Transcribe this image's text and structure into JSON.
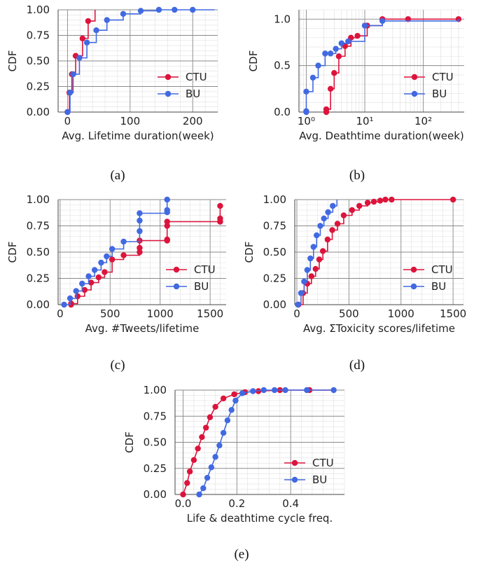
{
  "colors": {
    "ctu": "#dc143c",
    "bu": "#4169e1"
  },
  "chart_data": [
    {
      "id": "a",
      "caption": "(a)",
      "type": "line",
      "xlabel": "Avg. Lifetime duration(week)",
      "ylabel": "CDF",
      "xscale": "linear",
      "xlim": [
        -15,
        240
      ],
      "ylim": [
        0,
        1
      ],
      "xticks": [
        0,
        100,
        200
      ],
      "xtick_labels": [
        "0",
        "100",
        "200"
      ],
      "yticks": [
        0,
        0.25,
        0.5,
        0.75,
        1.0
      ],
      "ytick_labels": [
        "0.00",
        "0.25",
        "0.50",
        "0.75",
        "1.00"
      ],
      "legend_position": "lower-right",
      "legend": [
        "CTU",
        "BU"
      ],
      "series": [
        {
          "name": "CTU",
          "step": true,
          "x": [
            0,
            3,
            7,
            13,
            24,
            33,
            44
          ],
          "y": [
            0.0,
            0.19,
            0.37,
            0.55,
            0.72,
            0.89,
            1.0
          ],
          "markers": [
            0,
            3,
            7,
            13,
            24,
            33
          ]
        },
        {
          "name": "BU",
          "step": true,
          "x": [
            0,
            4,
            9,
            19,
            31,
            46,
            63,
            89,
            117,
            146,
            171,
            200,
            235
          ],
          "y": [
            0.0,
            0.19,
            0.37,
            0.53,
            0.68,
            0.8,
            0.9,
            0.96,
            0.99,
            1.0,
            1.0,
            1.0,
            1.0
          ],
          "markers": [
            0,
            4,
            9,
            19,
            31,
            46,
            63,
            89,
            117,
            146,
            171,
            200
          ]
        }
      ]
    },
    {
      "id": "b",
      "caption": "(b)",
      "type": "line",
      "xlabel": "Avg. Deathtime duration(week)",
      "ylabel": "CDF",
      "xscale": "log",
      "xlim": [
        0.75,
        500
      ],
      "ylim": [
        0,
        1.1
      ],
      "xticks": [
        1,
        10,
        100
      ],
      "xtick_labels": [
        "10⁰",
        "10¹",
        "10²"
      ],
      "yticks": [
        0,
        0.5,
        1.0
      ],
      "ytick_labels": [
        "0.0",
        "0.5",
        "1.0"
      ],
      "legend_position": "lower-right",
      "legend": [
        "CTU",
        "BU"
      ],
      "series": [
        {
          "name": "CTU",
          "step": true,
          "x": [
            2.2,
            2.2,
            2.6,
            3.0,
            3.6,
            4.6,
            5.8,
            7.5,
            11,
            20,
            55,
            400
          ],
          "y": [
            0.0,
            0.03,
            0.25,
            0.42,
            0.6,
            0.71,
            0.8,
            0.82,
            0.93,
            1.0,
            1.0,
            1.0
          ],
          "markers": [
            2.2,
            2.2,
            2.6,
            3.0,
            3.6,
            4.6,
            5.8,
            7.5,
            11,
            20,
            55,
            400
          ]
        },
        {
          "name": "BU",
          "step": true,
          "x": [
            1.0,
            1.0,
            1.0,
            1.3,
            1.6,
            2.1,
            2.6,
            3.2,
            4.0,
            5.2,
            10,
            20,
            400
          ],
          "y": [
            0.0,
            0.01,
            0.22,
            0.37,
            0.5,
            0.63,
            0.63,
            0.68,
            0.74,
            0.76,
            0.93,
            0.98,
            1.0
          ],
          "markers": [
            1.0,
            1.0,
            1.0,
            1.3,
            1.6,
            2.1,
            2.6,
            3.2,
            4.0,
            5.2,
            10,
            20
          ]
        }
      ]
    },
    {
      "id": "c",
      "caption": "(c)",
      "type": "line",
      "xlabel": "Avg. #Tweets/lifetime",
      "ylabel": "CDF",
      "xscale": "linear",
      "xlim": [
        -20,
        1660
      ],
      "ylim": [
        0,
        1
      ],
      "xticks": [
        0,
        500,
        1000,
        1500
      ],
      "xtick_labels": [
        "0",
        "500",
        "1000",
        "1500"
      ],
      "yticks": [
        0,
        0.25,
        0.5,
        0.75,
        1.0
      ],
      "ytick_labels": [
        "0.00",
        "0.25",
        "0.50",
        "0.75",
        "1.00"
      ],
      "legend_position": "lower-right",
      "legend": [
        "CTU",
        "BU"
      ],
      "series": [
        {
          "name": "CTU",
          "step": true,
          "x": [
            110,
            110,
            175,
            245,
            310,
            385,
            445,
            520,
            635,
            795,
            795,
            795,
            1070,
            1070,
            1070,
            1070,
            1600,
            1600,
            1600,
            1600
          ],
          "y": [
            0.0,
            0.01,
            0.08,
            0.14,
            0.21,
            0.26,
            0.31,
            0.43,
            0.47,
            0.5,
            0.54,
            0.61,
            0.62,
            0.61,
            0.75,
            0.79,
            0.79,
            0.79,
            0.82,
            0.94
          ],
          "markers": [
            110,
            110,
            175,
            245,
            310,
            385,
            445,
            520,
            635,
            795,
            795,
            795,
            1070,
            1070,
            1070,
            1600,
            1600,
            1600
          ]
        },
        {
          "name": "BU",
          "step": true,
          "x": [
            40,
            100,
            160,
            220,
            285,
            345,
            410,
            465,
            520,
            635,
            795,
            795,
            795,
            1070,
            1070,
            1070
          ],
          "y": [
            0.0,
            0.06,
            0.13,
            0.2,
            0.27,
            0.33,
            0.4,
            0.46,
            0.53,
            0.6,
            0.7,
            0.8,
            0.87,
            0.88,
            0.9,
            1.0
          ],
          "markers": [
            40,
            100,
            160,
            220,
            285,
            345,
            410,
            465,
            520,
            635,
            795,
            795,
            795,
            1070,
            1070
          ]
        }
      ]
    },
    {
      "id": "d",
      "caption": "(d)",
      "type": "line",
      "xlabel": "Avg. ΣToxicity scores/lifetime",
      "ylabel": "CDF",
      "xscale": "linear",
      "xlim": [
        -20,
        1600
      ],
      "ylim": [
        0,
        1
      ],
      "xticks": [
        0,
        500,
        1000,
        1500
      ],
      "xtick_labels": [
        "0",
        "500",
        "1000",
        "1500"
      ],
      "yticks": [
        0,
        0.25,
        0.5,
        0.75,
        1.0
      ],
      "ytick_labels": [
        "0.00",
        "0.25",
        "0.50",
        "0.75",
        "1.00"
      ],
      "legend_position": "lower-right",
      "legend": [
        "CTU",
        "BU"
      ],
      "series": [
        {
          "name": "CTU",
          "step": true,
          "x": [
            15,
            60,
            100,
            140,
            180,
            215,
            250,
            295,
            340,
            390,
            450,
            530,
            600,
            680,
            740,
            800,
            850,
            910,
            1500
          ],
          "y": [
            0.0,
            0.11,
            0.2,
            0.27,
            0.34,
            0.43,
            0.51,
            0.62,
            0.71,
            0.77,
            0.85,
            0.9,
            0.94,
            0.97,
            0.98,
            0.99,
            1.0,
            1.0,
            1.0
          ],
          "markers": [
            15,
            60,
            100,
            140,
            180,
            215,
            250,
            295,
            340,
            390,
            450,
            530,
            600,
            680,
            740,
            800,
            850,
            910,
            1500
          ]
        },
        {
          "name": "BU",
          "step": true,
          "x": [
            10,
            40,
            70,
            100,
            130,
            160,
            190,
            225,
            260,
            300,
            345,
            385
          ],
          "y": [
            0.0,
            0.11,
            0.22,
            0.33,
            0.44,
            0.55,
            0.66,
            0.75,
            0.82,
            0.88,
            0.94,
            1.0
          ],
          "markers": [
            10,
            40,
            70,
            100,
            130,
            160,
            190,
            225,
            260,
            300,
            345
          ]
        }
      ]
    },
    {
      "id": "e",
      "caption": "(e)",
      "type": "line",
      "xlabel": "Life & deathtime cycle freq.",
      "ylabel": "CDF",
      "xscale": "linear",
      "xlim": [
        -0.03,
        0.6
      ],
      "ylim": [
        0,
        1
      ],
      "xticks": [
        0,
        0.2,
        0.4
      ],
      "xtick_labels": [
        "0.0",
        "0.2",
        "0.4"
      ],
      "yticks": [
        0,
        0.25,
        0.5,
        0.75,
        1.0
      ],
      "ytick_labels": [
        "0.00",
        "0.25",
        "0.50",
        "0.75",
        "1.00"
      ],
      "legend_position": "center-right",
      "legend": [
        "CTU",
        "BU"
      ],
      "series": [
        {
          "name": "CTU",
          "step": false,
          "x": [
            0.0,
            0.015,
            0.025,
            0.04,
            0.055,
            0.07,
            0.085,
            0.1,
            0.12,
            0.15,
            0.19,
            0.23,
            0.28,
            0.36,
            0.47,
            0.56
          ],
          "y": [
            0.0,
            0.11,
            0.22,
            0.33,
            0.44,
            0.55,
            0.64,
            0.74,
            0.84,
            0.92,
            0.96,
            0.98,
            0.99,
            1.0,
            1.0,
            1.0
          ],
          "markers": [
            0.0,
            0.015,
            0.025,
            0.04,
            0.055,
            0.07,
            0.085,
            0.1,
            0.12,
            0.15,
            0.19,
            0.23,
            0.28,
            0.36,
            0.47
          ]
        },
        {
          "name": "BU",
          "step": false,
          "x": [
            0.06,
            0.075,
            0.09,
            0.105,
            0.12,
            0.135,
            0.15,
            0.165,
            0.18,
            0.195,
            0.22,
            0.26,
            0.3,
            0.34,
            0.38,
            0.46,
            0.56
          ],
          "y": [
            0.0,
            0.06,
            0.16,
            0.26,
            0.36,
            0.47,
            0.59,
            0.71,
            0.81,
            0.9,
            0.97,
            0.99,
            1.0,
            1.0,
            1.0,
            1.0,
            1.0
          ],
          "markers": [
            0.06,
            0.075,
            0.09,
            0.105,
            0.12,
            0.135,
            0.15,
            0.165,
            0.18,
            0.195,
            0.22,
            0.26,
            0.3,
            0.34,
            0.38,
            0.46,
            0.56
          ]
        }
      ]
    }
  ]
}
